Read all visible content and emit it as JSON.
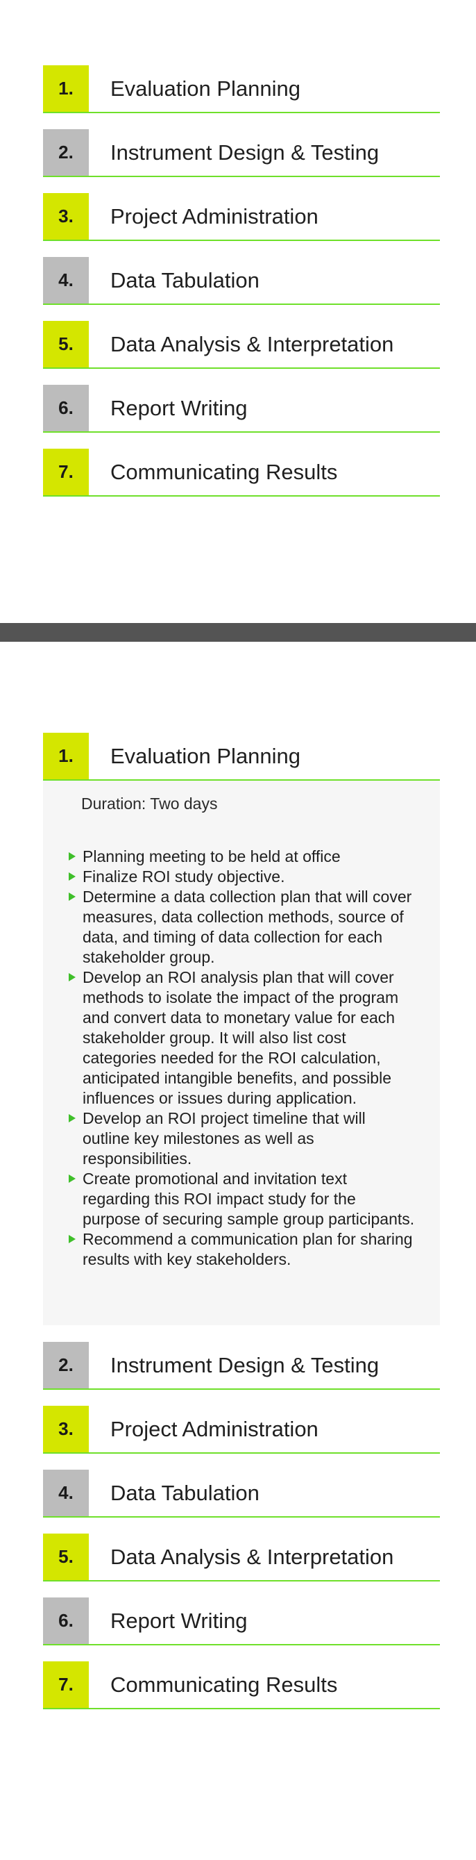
{
  "collapsed_view": {
    "steps": [
      {
        "number": "1.",
        "title": "Evaluation Planning",
        "color": "#d4e600"
      },
      {
        "number": "2.",
        "title": "Instrument Design & Testing",
        "color": "#bcbcbc"
      },
      {
        "number": "3.",
        "title": "Project Administration",
        "color": "#d4e600"
      },
      {
        "number": "4.",
        "title": "Data Tabulation",
        "color": "#bcbcbc"
      },
      {
        "number": "5.",
        "title": "Data Analysis & Interpretation",
        "color": "#d4e600"
      },
      {
        "number": "6.",
        "title": "Report Writing",
        "color": "#bcbcbc"
      },
      {
        "number": "7.",
        "title": "Communicating Results",
        "color": "#d4e600"
      }
    ]
  },
  "expanded_view": {
    "open_step": {
      "number": "1.",
      "title": "Evaluation Planning",
      "duration": "Duration: Two days",
      "tasks": [
        "Planning meeting to be held at office",
        "Finalize ROI study objective.",
        "Determine a data collection plan that will cover measures, data collection methods, source of data, and timing of data collection for each stakeholder group.",
        "Develop an ROI analysis plan that will cover methods to isolate the impact of the program and convert data to monetary value for each stakeholder group. It will also list cost categories needed for the ROI calculation, anticipated intangible benefits, and possible influences or issues during application.",
        "Develop an ROI project timeline that will outline key milestones as well as responsibilities.",
        "Create promotional and invitation text regarding this ROI impact study for the purpose of securing sample group participants.",
        "Recommend a communication plan for sharing results with key stakeholders."
      ]
    },
    "steps": [
      {
        "number": "2.",
        "title": "Instrument Design & Testing",
        "color": "#bcbcbc"
      },
      {
        "number": "3.",
        "title": "Project Administration",
        "color": "#d4e600"
      },
      {
        "number": "4.",
        "title": "Data Tabulation",
        "color": "#bcbcbc"
      },
      {
        "number": "5.",
        "title": "Data Analysis & Interpretation",
        "color": "#d4e600"
      },
      {
        "number": "6.",
        "title": "Report Writing",
        "color": "#bcbcbc"
      },
      {
        "number": "7.",
        "title": "Communicating Results",
        "color": "#d4e600"
      }
    ]
  },
  "colors": {
    "accent_lime": "#d4e600",
    "accent_grey": "#bcbcbc",
    "rule_green": "#6fe02a",
    "bullet_green": "#3fbf2a",
    "divider_bar": "#545454",
    "panel_bg": "#f6f6f6"
  }
}
